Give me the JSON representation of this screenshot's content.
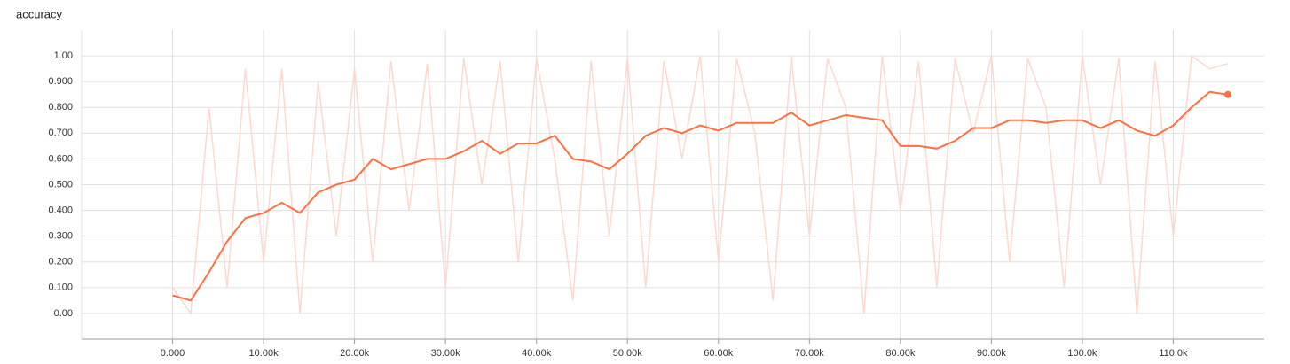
{
  "chart_data": {
    "type": "line",
    "title": "accuracy",
    "x": [
      0,
      2000,
      4000,
      6000,
      8000,
      10000,
      12000,
      14000,
      16000,
      18000,
      20000,
      22000,
      24000,
      26000,
      28000,
      30000,
      32000,
      34000,
      36000,
      38000,
      40000,
      42000,
      44000,
      46000,
      48000,
      50000,
      52000,
      54000,
      56000,
      58000,
      60000,
      62000,
      64000,
      66000,
      68000,
      70000,
      72000,
      74000,
      76000,
      78000,
      80000,
      82000,
      84000,
      86000,
      88000,
      90000,
      92000,
      94000,
      96000,
      98000,
      100000,
      102000,
      104000,
      106000,
      108000,
      110000,
      112000,
      114000,
      116000
    ],
    "series": [
      {
        "color": "#fcd9cf",
        "values": [
          0.1,
          0.0,
          0.8,
          0.1,
          0.95,
          0.2,
          0.95,
          0.0,
          0.9,
          0.3,
          0.95,
          0.2,
          0.98,
          0.4,
          0.97,
          0.1,
          0.99,
          0.5,
          0.98,
          0.2,
          0.99,
          0.6,
          0.05,
          0.98,
          0.3,
          0.99,
          0.1,
          0.98,
          0.6,
          1.0,
          0.2,
          0.99,
          0.7,
          0.05,
          1.0,
          0.3,
          0.99,
          0.8,
          0.0,
          1.0,
          0.4,
          0.98,
          0.1,
          0.99,
          0.7,
          1.0,
          0.2,
          0.99,
          0.8,
          0.1,
          1.0,
          0.5,
          0.99,
          0.0,
          0.98,
          0.3,
          1.0,
          0.95,
          0.97
        ]
      },
      {
        "color": "#ff7043",
        "values": [
          0.07,
          0.05,
          0.16,
          0.28,
          0.37,
          0.39,
          0.43,
          0.39,
          0.47,
          0.5,
          0.52,
          0.6,
          0.56,
          0.58,
          0.6,
          0.6,
          0.63,
          0.67,
          0.62,
          0.66,
          0.66,
          0.69,
          0.6,
          0.59,
          0.56,
          0.62,
          0.69,
          0.72,
          0.7,
          0.73,
          0.71,
          0.74,
          0.74,
          0.74,
          0.78,
          0.73,
          0.75,
          0.77,
          0.76,
          0.75,
          0.65,
          0.65,
          0.64,
          0.67,
          0.72,
          0.72,
          0.75,
          0.75,
          0.74,
          0.75,
          0.75,
          0.72,
          0.75,
          0.71,
          0.69,
          0.73,
          0.8,
          0.86,
          0.85
        ]
      }
    ],
    "xlim": [
      -10000,
      120000
    ],
    "xticks": [
      {
        "value": 0,
        "label": "0.000"
      },
      {
        "value": 10000,
        "label": "10.00k"
      },
      {
        "value": 20000,
        "label": "20.00k"
      },
      {
        "value": 30000,
        "label": "30.00k"
      },
      {
        "value": 40000,
        "label": "40.00k"
      },
      {
        "value": 50000,
        "label": "50.00k"
      },
      {
        "value": 60000,
        "label": "60.00k"
      },
      {
        "value": 70000,
        "label": "70.00k"
      },
      {
        "value": 80000,
        "label": "80.00k"
      },
      {
        "value": 90000,
        "label": "90.00k"
      },
      {
        "value": 100000,
        "label": "100.0k"
      },
      {
        "value": 110000,
        "label": "110.0k"
      }
    ],
    "ylim": [
      -0.1,
      1.1
    ],
    "yticks": [
      {
        "value": 0,
        "label": "0.00"
      },
      {
        "value": 0.1,
        "label": "0.100"
      },
      {
        "value": 0.2,
        "label": "0.200"
      },
      {
        "value": 0.3,
        "label": "0.300"
      },
      {
        "value": 0.4,
        "label": "0.400"
      },
      {
        "value": 0.5,
        "label": "0.500"
      },
      {
        "value": 0.6,
        "label": "0.600"
      },
      {
        "value": 0.7,
        "label": "0.700"
      },
      {
        "value": 0.8,
        "label": "0.800"
      },
      {
        "value": 0.9,
        "label": "0.900"
      },
      {
        "value": 1,
        "label": "1.00"
      }
    ],
    "grid": true
  }
}
